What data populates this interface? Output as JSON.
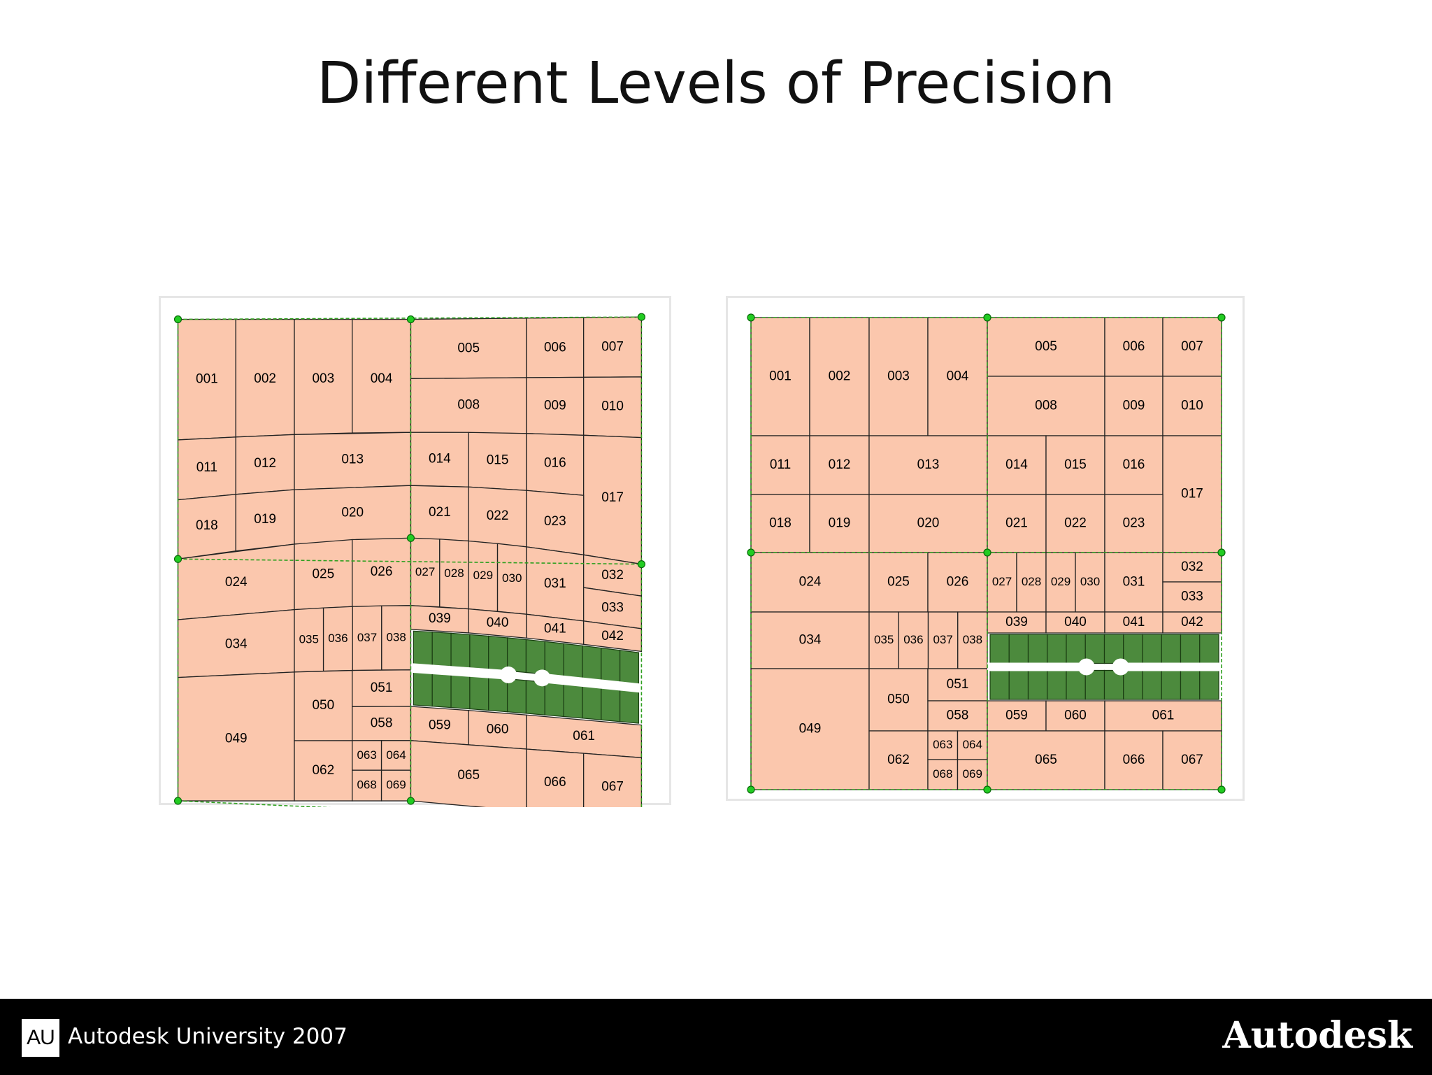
{
  "slide": {
    "title": "Different Levels of Precision"
  },
  "footer": {
    "logo_text": "AU",
    "event_text": "Autodesk University 2007",
    "brand_text": "Autodesk"
  },
  "colors": {
    "parcel_fill": "#fbc7ad",
    "lot_fill": "#4c8a3d",
    "node": "#22cc22",
    "footer_bg": "#000000"
  },
  "maps": {
    "left": {
      "caption": "",
      "parcel_ids": [
        "001",
        "002",
        "003",
        "004",
        "005",
        "006",
        "007",
        "008",
        "009",
        "010",
        "011",
        "012",
        "013",
        "014",
        "015",
        "016",
        "017",
        "018",
        "019",
        "020",
        "021",
        "022",
        "023",
        "024",
        "025",
        "026",
        "027",
        "028",
        "029",
        "030",
        "031",
        "032",
        "033",
        "034",
        "035",
        "036",
        "037",
        "038",
        "039",
        "040",
        "041",
        "042",
        "049",
        "050",
        "051",
        "058",
        "059",
        "060",
        "061",
        "062",
        "063",
        "064",
        "065",
        "066",
        "067",
        "068",
        "069"
      ]
    },
    "right": {
      "caption": "",
      "parcel_ids": [
        "001",
        "002",
        "003",
        "004",
        "005",
        "006",
        "007",
        "008",
        "009",
        "010",
        "011",
        "012",
        "013",
        "014",
        "015",
        "016",
        "017",
        "018",
        "019",
        "020",
        "021",
        "022",
        "023",
        "024",
        "025",
        "026",
        "027",
        "028",
        "029",
        "030",
        "031",
        "032",
        "033",
        "034",
        "035",
        "036",
        "037",
        "038",
        "039",
        "040",
        "041",
        "042",
        "049",
        "050",
        "051",
        "058",
        "059",
        "060",
        "061",
        "062",
        "063",
        "064",
        "065",
        "066",
        "067",
        "068",
        "069"
      ]
    }
  }
}
